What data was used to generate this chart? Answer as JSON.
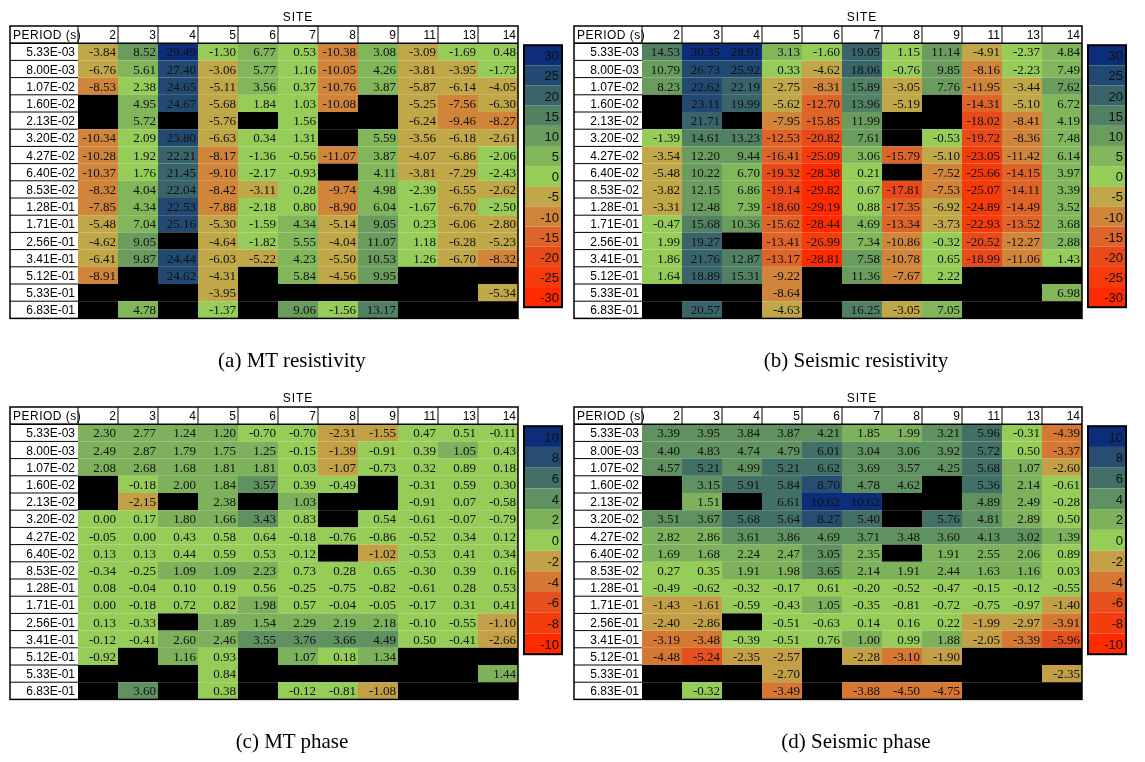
{
  "chart_data": [
    {
      "type": "heatmap",
      "title": "(a) MT resistivity",
      "xlabel": "SITE",
      "ylabel": "PERIOD (s)",
      "data_labels": true,
      "categories": [
        "2",
        "3",
        "4",
        "5",
        "6",
        "7",
        "8",
        "9",
        "11",
        "13",
        "14"
      ],
      "y_categories": [
        "5.33E-03",
        "8.00E-03",
        "1.07E-02",
        "1.60E-02",
        "2.13E-02",
        "3.20E-02",
        "4.27E-02",
        "6.40E-02",
        "8.53E-02",
        "1.28E-01",
        "1.71E-01",
        "2.56E-01",
        "3.41E-01",
        "5.12E-01",
        "5.33E-01",
        "6.83E-01"
      ],
      "clim": [
        -30,
        30
      ],
      "cticks": [
        30,
        25,
        20,
        15,
        10,
        5,
        0,
        -5,
        -10,
        -15,
        -20,
        -25,
        -30
      ],
      "cells": [
        [
          -3.84,
          8.52,
          29.49,
          -1.3,
          6.77,
          0.53,
          -10.38,
          3.08,
          -3.09,
          -1.69,
          0.48
        ],
        [
          -6.76,
          5.61,
          27.4,
          -3.06,
          5.77,
          1.16,
          -10.05,
          4.26,
          -3.81,
          -3.95,
          -1.73
        ],
        [
          -8.53,
          2.38,
          24.65,
          -5.11,
          3.56,
          0.37,
          -10.76,
          3.87,
          -5.87,
          -6.14,
          -4.05
        ],
        [
          null,
          4.95,
          24.67,
          -5.68,
          1.84,
          1.03,
          -10.08,
          null,
          -5.25,
          -7.56,
          -6.3
        ],
        [
          null,
          5.72,
          null,
          -5.76,
          null,
          1.56,
          null,
          null,
          -6.24,
          -9.46,
          -8.27
        ],
        [
          -10.34,
          2.09,
          23.8,
          -6.63,
          0.34,
          1.31,
          null,
          5.59,
          -3.56,
          -6.18,
          -2.61
        ],
        [
          -10.28,
          1.92,
          22.21,
          -8.17,
          -1.36,
          -0.56,
          -11.07,
          3.87,
          -4.07,
          -6.86,
          -2.06
        ],
        [
          -10.37,
          1.76,
          21.45,
          -9.1,
          -2.17,
          -0.93,
          null,
          4.11,
          -3.81,
          -7.29,
          -2.43
        ],
        [
          -8.32,
          4.04,
          22.04,
          -8.42,
          -3.11,
          0.28,
          -9.74,
          4.98,
          -2.39,
          -6.55,
          -2.62
        ],
        [
          -7.85,
          4.34,
          22.53,
          -7.88,
          -2.18,
          0.8,
          -8.9,
          6.04,
          -1.67,
          -6.7,
          -2.5
        ],
        [
          -5.48,
          7.04,
          25.16,
          -5.3,
          -1.59,
          4.34,
          -5.14,
          9.05,
          0.23,
          -6.06,
          -2.8
        ],
        [
          -4.62,
          9.05,
          null,
          -4.64,
          -1.82,
          5.55,
          -4.04,
          11.07,
          1.18,
          -6.28,
          -5.23
        ],
        [
          -6.41,
          9.87,
          24.44,
          -6.03,
          -5.22,
          4.23,
          -5.5,
          10.53,
          1.26,
          -6.7,
          -8.32
        ],
        [
          -8.91,
          null,
          24.62,
          -4.31,
          null,
          5.84,
          -4.56,
          9.95,
          null,
          null,
          null
        ],
        [
          null,
          null,
          null,
          -3.95,
          null,
          null,
          null,
          null,
          null,
          null,
          -5.34
        ],
        [
          null,
          4.78,
          null,
          -1.37,
          null,
          9.06,
          -1.56,
          13.17,
          null,
          null,
          null
        ]
      ],
      "cell_labels": [
        [
          "-3.84",
          "8.52",
          "29.49",
          "-1.30",
          "6.77",
          "0.53",
          "-10.38",
          "3.08",
          "-3.09",
          "-1.69",
          "0.48"
        ],
        [
          "-6.76",
          "5.61",
          "27.40",
          "-3.06",
          "5.77",
          "1.16",
          "-10.05",
          "4.26",
          "-3.81",
          "-3.95",
          "-1.73"
        ],
        [
          "-8.53",
          "2.38",
          "24.65",
          "-5.11",
          "3.56",
          "0.37",
          "-10.76",
          "3.87",
          "-5.87",
          "-6.14",
          "-4.05"
        ],
        [
          null,
          "4.95",
          "24.67",
          "-5.68",
          "1.84",
          "1.03",
          "-10.08",
          null,
          "-5.25",
          "-7.56",
          "-6.30"
        ],
        [
          null,
          "5.72",
          null,
          "-5.76",
          null,
          "1.56",
          null,
          null,
          "-6.24",
          "-9.46",
          "-8.27"
        ],
        [
          "-10.34",
          "2.09",
          "23.80",
          "-6.63",
          "0.34",
          "1.31",
          null,
          "5.59",
          "-3.56",
          "-6.18",
          "-2.61"
        ],
        [
          "-10.28",
          "1.92",
          "22.21",
          "-8.17",
          "-1.36",
          "-0.56",
          "-11.07",
          "3.87",
          "-4.07",
          "-6.86",
          "-2.06"
        ],
        [
          "-10.37",
          "1.76",
          "21.45",
          "-9.10",
          "-2.17",
          "-0.93",
          null,
          "4.11",
          "-3.81",
          "-7.29",
          "-2.43"
        ],
        [
          "-8.32",
          "4.04",
          "22.04",
          "-8.42",
          "-3.11",
          "0.28",
          "-9.74",
          "4.98",
          "-2.39",
          "-6.55",
          "-2.62"
        ],
        [
          "-7.85",
          "4.34",
          "22.53",
          "-7.88",
          "-2.18",
          "0.80",
          "-8.90",
          "6.04",
          "-1.67",
          "-6.70",
          "-2.50"
        ],
        [
          "-5.48",
          "7.04",
          "25.16",
          "-5.30",
          "-1.59",
          "4.34",
          "-5.14",
          "9.05",
          "0.23",
          "-6.06",
          "-2.80"
        ],
        [
          "-4.62",
          "9.05",
          null,
          "-4.64",
          "-1.82",
          "5.55",
          "-4.04",
          "11.07",
          "1.18",
          "-6.28",
          "-5.23"
        ],
        [
          "-6.41",
          "9.87",
          "24.44",
          "-6.03",
          "-5.22",
          "4.23",
          "-5.50",
          "10.53",
          "1.26",
          "-6.70",
          "-8.32"
        ],
        [
          "-8.91",
          null,
          "24.62",
          "-4.31",
          null,
          "5.84",
          "-4.56",
          "9.95",
          null,
          null,
          null
        ],
        [
          null,
          null,
          null,
          "-3.95",
          null,
          null,
          null,
          null,
          null,
          null,
          "-5.34"
        ],
        [
          null,
          "4.78",
          null,
          "-1.37",
          null,
          "9.06",
          "-1.56",
          "13.17",
          null,
          null,
          null
        ]
      ]
    },
    {
      "type": "heatmap",
      "title": "(b) Seismic resistivity",
      "xlabel": "SITE",
      "ylabel": "PERIOD (s)",
      "data_labels": true,
      "categories": [
        "2",
        "3",
        "4",
        "5",
        "6",
        "7",
        "8",
        "9",
        "11",
        "13",
        "14"
      ],
      "y_categories": [
        "5.33E-03",
        "8.00E-03",
        "1.07E-02",
        "1.60E-02",
        "2.13E-02",
        "3.20E-02",
        "4.27E-02",
        "6.40E-02",
        "8.53E-02",
        "1.28E-01",
        "1.71E-01",
        "2.56E-01",
        "3.41E-01",
        "5.12E-01",
        "5.33E-01",
        "6.83E-01"
      ],
      "clim": [
        -30,
        30
      ],
      "cticks": [
        30,
        25,
        20,
        15,
        10,
        5,
        0,
        -5,
        -10,
        -15,
        -20,
        -25,
        -30
      ],
      "cells": [
        [
          14.53,
          30.35,
          28.91,
          3.13,
          -1.6,
          19.05,
          1.15,
          11.14,
          -4.91,
          -2.37,
          4.84
        ],
        [
          10.79,
          26.73,
          25.92,
          0.33,
          -4.62,
          18.06,
          -0.76,
          9.85,
          -8.16,
          -2.23,
          7.49
        ],
        [
          8.23,
          22.62,
          22.19,
          -2.75,
          -8.31,
          15.89,
          -3.05,
          7.76,
          -11.95,
          -3.44,
          7.62
        ],
        [
          null,
          23.11,
          19.99,
          -5.62,
          -12.7,
          13.96,
          -5.19,
          null,
          -14.31,
          -5.1,
          6.72
        ],
        [
          null,
          21.71,
          null,
          -7.95,
          -15.85,
          11.99,
          null,
          null,
          -18.02,
          -8.41,
          4.19
        ],
        [
          -1.39,
          14.61,
          13.23,
          -12.53,
          -20.82,
          7.61,
          null,
          -0.53,
          -19.72,
          -8.36,
          7.48
        ],
        [
          -3.54,
          12.2,
          9.44,
          -16.41,
          -25.09,
          3.06,
          -15.79,
          -5.1,
          -23.05,
          -11.42,
          6.14
        ],
        [
          -5.48,
          10.22,
          6.7,
          -19.32,
          -28.38,
          0.21,
          null,
          -7.52,
          -25.66,
          -14.15,
          3.97
        ],
        [
          -3.82,
          12.15,
          6.86,
          -19.14,
          -29.82,
          0.67,
          -17.81,
          -7.53,
          -25.07,
          -14.11,
          3.39
        ],
        [
          -3.31,
          12.48,
          7.39,
          -18.6,
          -29.19,
          0.88,
          -17.35,
          -6.92,
          -24.89,
          -14.49,
          3.52
        ],
        [
          -0.47,
          15.68,
          10.36,
          -15.62,
          -28.44,
          4.69,
          -13.34,
          -3.73,
          -22.93,
          -13.52,
          3.68
        ],
        [
          1.99,
          19.27,
          null,
          -13.41,
          -26.99,
          7.34,
          -10.86,
          -0.32,
          -20.52,
          -12.27,
          2.88
        ],
        [
          1.86,
          21.76,
          12.87,
          -13.17,
          -28.81,
          7.58,
          -10.78,
          0.65,
          -18.99,
          -11.06,
          1.43
        ],
        [
          1.64,
          18.89,
          15.31,
          -9.22,
          null,
          11.36,
          -7.67,
          2.22,
          null,
          null,
          null
        ],
        [
          null,
          null,
          null,
          -8.64,
          null,
          null,
          null,
          null,
          null,
          null,
          6.98
        ],
        [
          null,
          20.57,
          null,
          -4.63,
          null,
          16.25,
          -3.05,
          7.05,
          null,
          null,
          null
        ]
      ],
      "cell_labels": [
        [
          "14.53",
          "30.35",
          "28.91",
          "3.13",
          "-1.60",
          "19.05",
          "1.15",
          "11.14",
          "-4.91",
          "-2.37",
          "4.84"
        ],
        [
          "10.79",
          "26.73",
          "25.92",
          "0.33",
          "-4.62",
          "18.06",
          "-0.76",
          "9.85",
          "-8.16",
          "-2.23",
          "7.49"
        ],
        [
          "8.23",
          "22.62",
          "22.19",
          "-2.75",
          "-8.31",
          "15.89",
          "-3.05",
          "7.76",
          "-11.95",
          "-3.44",
          "7.62"
        ],
        [
          null,
          "23.11",
          "19.99",
          "-5.62",
          "-12.70",
          "13.96",
          "-5.19",
          null,
          "-14.31",
          "-5.10",
          "6.72"
        ],
        [
          null,
          "21.71",
          null,
          "-7.95",
          "-15.85",
          "11.99",
          null,
          null,
          "-18.02",
          "-8.41",
          "4.19"
        ],
        [
          "-1.39",
          "14.61",
          "13.23",
          "-12.53",
          "-20.82",
          "7.61",
          null,
          "-0.53",
          "-19.72",
          "-8.36",
          "7.48"
        ],
        [
          "-3.54",
          "12.20",
          "9.44",
          "-16.41",
          "-25.09",
          "3.06",
          "-15.79",
          "-5.10",
          "-23.05",
          "-11.42",
          "6.14"
        ],
        [
          "-5.48",
          "10.22",
          "6.70",
          "-19.32",
          "-28.38",
          "0.21",
          null,
          "-7.52",
          "-25.66",
          "-14.15",
          "3.97"
        ],
        [
          "-3.82",
          "12.15",
          "6.86",
          "-19.14",
          "-29.82",
          "0.67",
          "-17.81",
          "-7.53",
          "-25.07",
          "-14.11",
          "3.39"
        ],
        [
          "-3.31",
          "12.48",
          "7.39",
          "-18.60",
          "-29.19",
          "0.88",
          "-17.35",
          "-6.92",
          "-24.89",
          "-14.49",
          "3.52"
        ],
        [
          "-0.47",
          "15.68",
          "10.36",
          "-15.62",
          "-28.44",
          "4.69",
          "-13.34",
          "-3.73",
          "-22.93",
          "-13.52",
          "3.68"
        ],
        [
          "1.99",
          "19.27",
          null,
          "-13.41",
          "-26.99",
          "7.34",
          "-10.86",
          "-0.32",
          "-20.52",
          "-12.27",
          "2.88"
        ],
        [
          "1.86",
          "21.76",
          "12.87",
          "-13.17",
          "-28.81",
          "7.58",
          "-10.78",
          "0.65",
          "-18.99",
          "-11.06",
          "1.43"
        ],
        [
          "1.64",
          "18.89",
          "15.31",
          "-9.22",
          null,
          "11.36",
          "-7.67",
          "2.22",
          null,
          null,
          null
        ],
        [
          null,
          null,
          null,
          "-8.64",
          null,
          null,
          null,
          null,
          null,
          null,
          "6.98"
        ],
        [
          null,
          "20.57",
          null,
          "-4.63",
          null,
          "16.25",
          "-3.05",
          "7.05",
          null,
          null,
          null
        ]
      ]
    },
    {
      "type": "heatmap",
      "title": "(c) MT phase",
      "xlabel": "SITE",
      "ylabel": "PERIOD (s)",
      "data_labels": true,
      "categories": [
        "2",
        "3",
        "4",
        "5",
        "6",
        "7",
        "8",
        "9",
        "11",
        "13",
        "14"
      ],
      "y_categories": [
        "5.33E-03",
        "8.00E-03",
        "1.07E-02",
        "1.60E-02",
        "2.13E-02",
        "3.20E-02",
        "4.27E-02",
        "6.40E-02",
        "8.53E-02",
        "1.28E-01",
        "1.71E-01",
        "2.56E-01",
        "3.41E-01",
        "5.12E-01",
        "5.33E-01",
        "6.83E-01"
      ],
      "clim": [
        -10,
        10
      ],
      "cticks": [
        10,
        8,
        6,
        4,
        2,
        0,
        -2,
        -4,
        -6,
        -8,
        -10
      ],
      "cells": [
        [
          2.3,
          2.77,
          1.24,
          1.2,
          -0.7,
          -0.7,
          -2.31,
          -1.55,
          0.47,
          0.51,
          -0.11
        ],
        [
          2.49,
          2.87,
          1.79,
          1.75,
          1.25,
          -0.15,
          -1.39,
          -0.91,
          0.39,
          1.05,
          0.43
        ],
        [
          2.08,
          2.68,
          1.68,
          1.81,
          1.81,
          0.03,
          -1.07,
          -0.73,
          0.32,
          0.89,
          0.18
        ],
        [
          null,
          -0.18,
          2.0,
          1.84,
          3.57,
          0.39,
          -0.49,
          null,
          -0.31,
          0.59,
          0.3
        ],
        [
          null,
          -2.15,
          null,
          2.38,
          null,
          1.03,
          null,
          null,
          -0.91,
          0.07,
          -0.58
        ],
        [
          0.0,
          0.17,
          1.8,
          1.66,
          3.43,
          0.83,
          null,
          0.54,
          -0.61,
          -0.07,
          -0.79
        ],
        [
          -0.05,
          0.0,
          0.43,
          0.58,
          0.64,
          -0.18,
          -0.76,
          -0.86,
          -0.52,
          0.34,
          0.12
        ],
        [
          0.13,
          0.13,
          0.44,
          0.59,
          0.53,
          -0.12,
          null,
          -1.02,
          -0.53,
          0.41,
          0.34
        ],
        [
          -0.34,
          -0.25,
          1.09,
          1.09,
          2.23,
          0.73,
          0.28,
          0.65,
          -0.3,
          0.39,
          0.16
        ],
        [
          0.08,
          -0.04,
          0.1,
          0.19,
          0.56,
          -0.25,
          -0.75,
          -0.82,
          -0.61,
          0.28,
          0.53
        ],
        [
          0.0,
          -0.18,
          0.72,
          0.82,
          1.98,
          0.57,
          -0.04,
          -0.05,
          -0.17,
          0.31,
          0.41
        ],
        [
          0.13,
          -0.33,
          null,
          1.89,
          1.54,
          2.29,
          2.19,
          2.18,
          -0.1,
          -0.55,
          -1.1
        ],
        [
          -0.12,
          -0.41,
          2.6,
          2.46,
          3.55,
          3.76,
          3.66,
          4.49,
          0.5,
          -0.41,
          -2.66
        ],
        [
          -0.92,
          null,
          1.16,
          0.93,
          null,
          1.07,
          0.18,
          1.34,
          null,
          null,
          null
        ],
        [
          null,
          null,
          null,
          0.84,
          null,
          null,
          null,
          null,
          null,
          null,
          1.44
        ],
        [
          null,
          3.6,
          null,
          0.38,
          null,
          -0.12,
          -0.81,
          -1.08,
          null,
          null,
          null
        ]
      ],
      "cell_labels": [
        [
          "2.30",
          "2.77",
          "1.24",
          "1.20",
          "-0.70",
          "-0.70",
          "-2.31",
          "-1.55",
          "0.47",
          "0.51",
          "-0.11"
        ],
        [
          "2.49",
          "2.87",
          "1.79",
          "1.75",
          "1.25",
          "-0.15",
          "-1.39",
          "-0.91",
          "0.39",
          "1.05",
          "0.43"
        ],
        [
          "2.08",
          "2.68",
          "1.68",
          "1.81",
          "1.81",
          "0.03",
          "-1.07",
          "-0.73",
          "0.32",
          "0.89",
          "0.18"
        ],
        [
          null,
          "-0.18",
          "2.00",
          "1.84",
          "3.57",
          "0.39",
          "-0.49",
          null,
          "-0.31",
          "0.59",
          "0.30"
        ],
        [
          null,
          "-2.15",
          null,
          "2.38",
          null,
          "1.03",
          null,
          null,
          "-0.91",
          "0.07",
          "-0.58"
        ],
        [
          "0.00",
          "0.17",
          "1.80",
          "1.66",
          "3.43",
          "0.83",
          null,
          "0.54",
          "-0.61",
          "-0.07",
          "-0.79"
        ],
        [
          "-0.05",
          "0.00",
          "0.43",
          "0.58",
          "0.64",
          "-0.18",
          "-0.76",
          "-0.86",
          "-0.52",
          "0.34",
          "0.12"
        ],
        [
          "0.13",
          "0.13",
          "0.44",
          "0.59",
          "0.53",
          "-0.12",
          null,
          "-1.02",
          "-0.53",
          "0.41",
          "0.34"
        ],
        [
          "-0.34",
          "-0.25",
          "1.09",
          "1.09",
          "2.23",
          "0.73",
          "0.28",
          "0.65",
          "-0.30",
          "0.39",
          "0.16"
        ],
        [
          "0.08",
          "-0.04",
          "0.10",
          "0.19",
          "0.56",
          "-0.25",
          "-0.75",
          "-0.82",
          "-0.61",
          "0.28",
          "0.53"
        ],
        [
          "0.00",
          "-0.18",
          "0.72",
          "0.82",
          "1.98",
          "0.57",
          "-0.04",
          "-0.05",
          "-0.17",
          "0.31",
          "0.41"
        ],
        [
          "0.13",
          "-0.33",
          null,
          "1.89",
          "1.54",
          "2.29",
          "2.19",
          "2.18",
          "-0.10",
          "-0.55",
          "-1.10"
        ],
        [
          "-0.12",
          "-0.41",
          "2.60",
          "2.46",
          "3.55",
          "3.76",
          "3.66",
          "4.49",
          "0.50",
          "-0.41",
          "-2.66"
        ],
        [
          "-0.92",
          null,
          "1.16",
          "0.93",
          null,
          "1.07",
          "0.18",
          "1.34",
          null,
          null,
          null
        ],
        [
          null,
          null,
          null,
          "0.84",
          null,
          null,
          null,
          null,
          null,
          null,
          "1.44"
        ],
        [
          null,
          "3.60",
          null,
          "0.38",
          null,
          "-0.12",
          "-0.81",
          "-1.08",
          null,
          null,
          null
        ]
      ]
    },
    {
      "type": "heatmap",
      "title": "(d) Seismic phase",
      "xlabel": "SITE",
      "ylabel": "PERIOD (s)",
      "data_labels": true,
      "categories": [
        "2",
        "3",
        "4",
        "5",
        "6",
        "7",
        "8",
        "9",
        "11",
        "13",
        "14"
      ],
      "y_categories": [
        "5.33E-03",
        "8.00E-03",
        "1.07E-02",
        "1.60E-02",
        "2.13E-02",
        "3.20E-02",
        "4.27E-02",
        "6.40E-02",
        "8.53E-02",
        "1.28E-01",
        "1.71E-01",
        "2.56E-01",
        "3.41E-01",
        "5.12E-01",
        "5.33E-01",
        "6.83E-01"
      ],
      "clim": [
        -10,
        10
      ],
      "cticks": [
        10,
        8,
        6,
        4,
        2,
        0,
        -2,
        -4,
        -6,
        -8,
        -10
      ],
      "cells": [
        [
          3.39,
          3.95,
          3.84,
          3.87,
          4.21,
          1.85,
          1.99,
          3.21,
          5.96,
          -0.31,
          -4.39
        ],
        [
          4.4,
          4.83,
          4.74,
          4.79,
          6.01,
          3.04,
          3.06,
          3.92,
          5.72,
          0.5,
          -3.37
        ],
        [
          4.57,
          5.21,
          4.99,
          5.21,
          6.62,
          3.69,
          3.57,
          4.25,
          5.68,
          1.07,
          -2.6
        ],
        [
          null,
          3.15,
          5.91,
          5.84,
          8.7,
          4.78,
          4.62,
          null,
          5.36,
          2.14,
          -0.61
        ],
        [
          null,
          1.51,
          null,
          6.61,
          10.62,
          10.62,
          null,
          null,
          4.89,
          2.49,
          -0.28
        ],
        [
          3.51,
          3.67,
          5.68,
          5.64,
          8.27,
          5.4,
          null,
          5.76,
          4.81,
          2.89,
          0.5
        ],
        [
          2.82,
          2.86,
          3.61,
          3.86,
          4.69,
          3.71,
          3.48,
          3.6,
          4.13,
          3.02,
          1.39
        ],
        [
          1.69,
          1.68,
          2.24,
          2.47,
          3.05,
          2.35,
          null,
          1.91,
          2.55,
          2.06,
          0.89
        ],
        [
          0.27,
          0.35,
          1.91,
          1.98,
          3.65,
          2.14,
          1.91,
          2.44,
          1.63,
          1.16,
          0.03
        ],
        [
          -0.49,
          -0.62,
          -0.32,
          -0.17,
          0.61,
          -0.2,
          -0.52,
          -0.47,
          -0.15,
          -0.12,
          -0.55
        ],
        [
          -1.43,
          -1.61,
          -0.59,
          -0.43,
          1.05,
          -0.35,
          -0.81,
          -0.72,
          -0.75,
          -0.97,
          -1.4
        ],
        [
          -2.4,
          -2.86,
          null,
          -0.51,
          -0.63,
          0.14,
          0.16,
          0.22,
          -1.99,
          -2.97,
          -3.91
        ],
        [
          -3.19,
          -3.48,
          -0.39,
          -0.51,
          0.76,
          1.0,
          0.99,
          1.88,
          -2.05,
          -3.39,
          -5.96
        ],
        [
          -4.48,
          -5.24,
          -2.35,
          -2.57,
          null,
          -2.28,
          -3.1,
          -1.9,
          null,
          null,
          null
        ],
        [
          null,
          null,
          null,
          -2.7,
          null,
          null,
          null,
          null,
          null,
          null,
          -2.35
        ],
        [
          null,
          -0.32,
          null,
          -3.49,
          null,
          -3.88,
          -4.5,
          -4.75,
          null,
          null,
          null
        ]
      ],
      "cell_labels": [
        [
          "3.39",
          "3.95",
          "3.84",
          "3.87",
          "4.21",
          "1.85",
          "1.99",
          "3.21",
          "5.96",
          "-0.31",
          "-4.39"
        ],
        [
          "4.40",
          "4.83",
          "4.74",
          "4.79",
          "6.01",
          "3.04",
          "3.06",
          "3.92",
          "5.72",
          "0.50",
          "-3.37"
        ],
        [
          "4.57",
          "5.21",
          "4.99",
          "5.21",
          "6.62",
          "3.69",
          "3.57",
          "4.25",
          "5.68",
          "1.07",
          "-2.60"
        ],
        [
          null,
          "3.15",
          "5.91",
          "5.84",
          "8.70",
          "4.78",
          "4.62",
          null,
          "5.36",
          "2.14",
          "-0.61"
        ],
        [
          null,
          "1.51",
          null,
          "6.61",
          "10.62",
          "10.62",
          null,
          null,
          "4.89",
          "2.49",
          "-0.28"
        ],
        [
          "3.51",
          "3.67",
          "5.68",
          "5.64",
          "8.27",
          "5.40",
          null,
          "5.76",
          "4.81",
          "2.89",
          "0.50"
        ],
        [
          "2.82",
          "2.86",
          "3.61",
          "3.86",
          "4.69",
          "3.71",
          "3.48",
          "3.60",
          "4.13",
          "3.02",
          "1.39"
        ],
        [
          "1.69",
          "1.68",
          "2.24",
          "2.47",
          "3.05",
          "2.35",
          null,
          "1.91",
          "2.55",
          "2.06",
          "0.89"
        ],
        [
          "0.27",
          "0.35",
          "1.91",
          "1.98",
          "3.65",
          "2.14",
          "1.91",
          "2.44",
          "1.63",
          "1.16",
          "0.03"
        ],
        [
          "-0.49",
          "-0.62",
          "-0.32",
          "-0.17",
          "0.61",
          "-0.20",
          "-0.52",
          "-0.47",
          "-0.15",
          "-0.12",
          "-0.55"
        ],
        [
          "-1.43",
          "-1.61",
          "-0.59",
          "-0.43",
          "1.05",
          "-0.35",
          "-0.81",
          "-0.72",
          "-0.75",
          "-0.97",
          "-1.40"
        ],
        [
          "-2.40",
          "-2.86",
          null,
          "-0.51",
          "-0.63",
          "0.14",
          "0.16",
          "0.22",
          "-1.99",
          "-2.97",
          "-3.91"
        ],
        [
          "-3.19",
          "-3.48",
          "-0.39",
          "-0.51",
          "0.76",
          "1.00",
          "0.99",
          "1.88",
          "-2.05",
          "-3.39",
          "-5.96"
        ],
        [
          "-4.48",
          "-5.24",
          "-2.35",
          "-2.57",
          null,
          "-2.28",
          "-3.10",
          "-1.90",
          null,
          null,
          null
        ],
        [
          null,
          null,
          null,
          "-2.70",
          null,
          null,
          null,
          null,
          null,
          null,
          "-2.35"
        ],
        [
          null,
          "-0.32",
          null,
          "-3.49",
          null,
          "-3.88",
          "-4.50",
          "-4.75",
          null,
          null,
          null
        ]
      ]
    }
  ]
}
